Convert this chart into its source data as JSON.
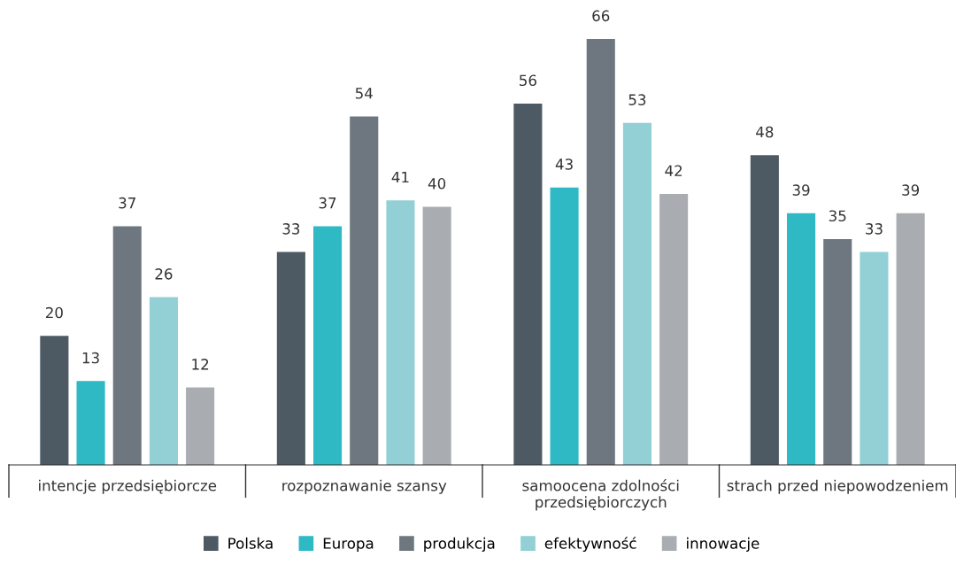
{
  "chart_data": {
    "type": "bar",
    "categories": [
      "intencje przedsiębiorcze",
      "rozpoznawanie szansy",
      "samoocena zdolności\nprzedsiębiorczych",
      "strach przed niepowodzeniem"
    ],
    "series": [
      {
        "name": "Polska",
        "color": "#4d5a64",
        "values": [
          20,
          33,
          56,
          48
        ]
      },
      {
        "name": "Europa",
        "color": "#2fb9c5",
        "values": [
          13,
          37,
          43,
          39
        ]
      },
      {
        "name": "produkcja",
        "color": "#6e7780",
        "values": [
          37,
          54,
          66,
          35
        ]
      },
      {
        "name": "efektywność",
        "color": "#92d0d6",
        "values": [
          26,
          41,
          53,
          33
        ]
      },
      {
        "name": "innowacje",
        "color": "#a9adb2",
        "values": [
          12,
          40,
          42,
          39
        ]
      }
    ],
    "data_labels": true,
    "legend": "bottom",
    "grid": false
  }
}
